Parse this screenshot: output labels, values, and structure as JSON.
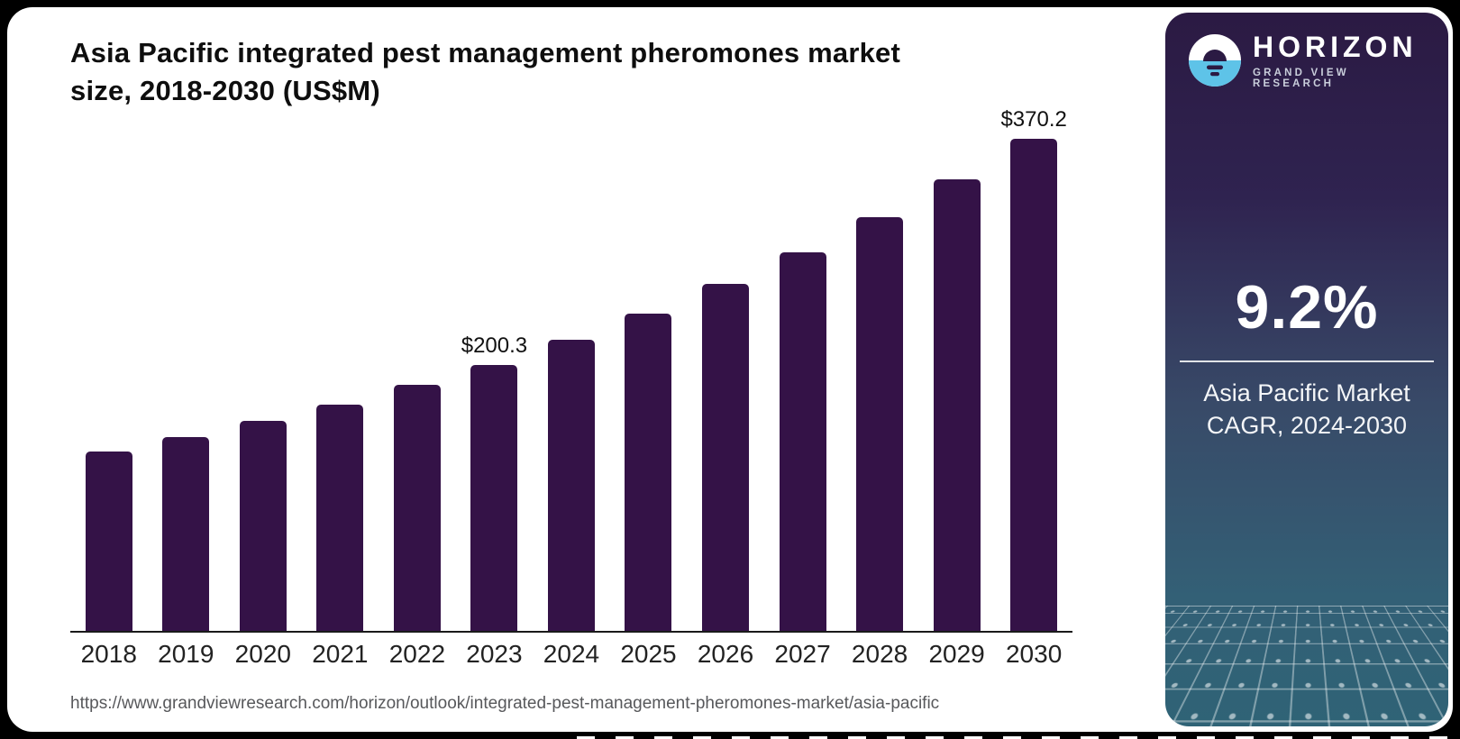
{
  "chart_card": {
    "title_line1": "Asia Pacific integrated pest management pheromones market",
    "title_line2": "size, 2018-2030 (US$M)",
    "source_url": "https://www.grandviewresearch.com/horizon/outlook/integrated-pest-management-pheromones-market/asia-pacific"
  },
  "chart_data": {
    "type": "bar",
    "title": "Asia Pacific integrated pest management pheromones market size, 2018-2030 (US$M)",
    "categories": [
      "2018",
      "2019",
      "2020",
      "2021",
      "2022",
      "2023",
      "2024",
      "2025",
      "2026",
      "2027",
      "2028",
      "2029",
      "2030"
    ],
    "values": [
      135,
      146,
      158,
      170,
      185,
      200.3,
      218.7,
      238.9,
      260.9,
      284.9,
      311.1,
      339.8,
      370.2
    ],
    "data_labels": [
      "",
      "",
      "",
      "",
      "",
      "$200.3",
      "",
      "",
      "",
      "",
      "",
      "",
      "$370.2"
    ],
    "xlabel": "",
    "ylabel": "",
    "ylim": [
      0,
      400
    ],
    "grid": false,
    "legend": false,
    "bar_color": "#341247"
  },
  "sidebar": {
    "logo": {
      "icon": "horizon-sun-circle-icon",
      "brand": "HORIZON",
      "sub_brand": "GRAND VIEW RESEARCH"
    },
    "stat": {
      "value": "9.2%",
      "label_line1": "Asia Pacific Market",
      "label_line2": "CAGR, 2024-2030"
    },
    "colors": {
      "gradient_top": "#2b1a43",
      "gradient_mid": "#384a68",
      "gradient_bottom": "#2f6376",
      "logo_blue": "#5ec3e8"
    }
  }
}
